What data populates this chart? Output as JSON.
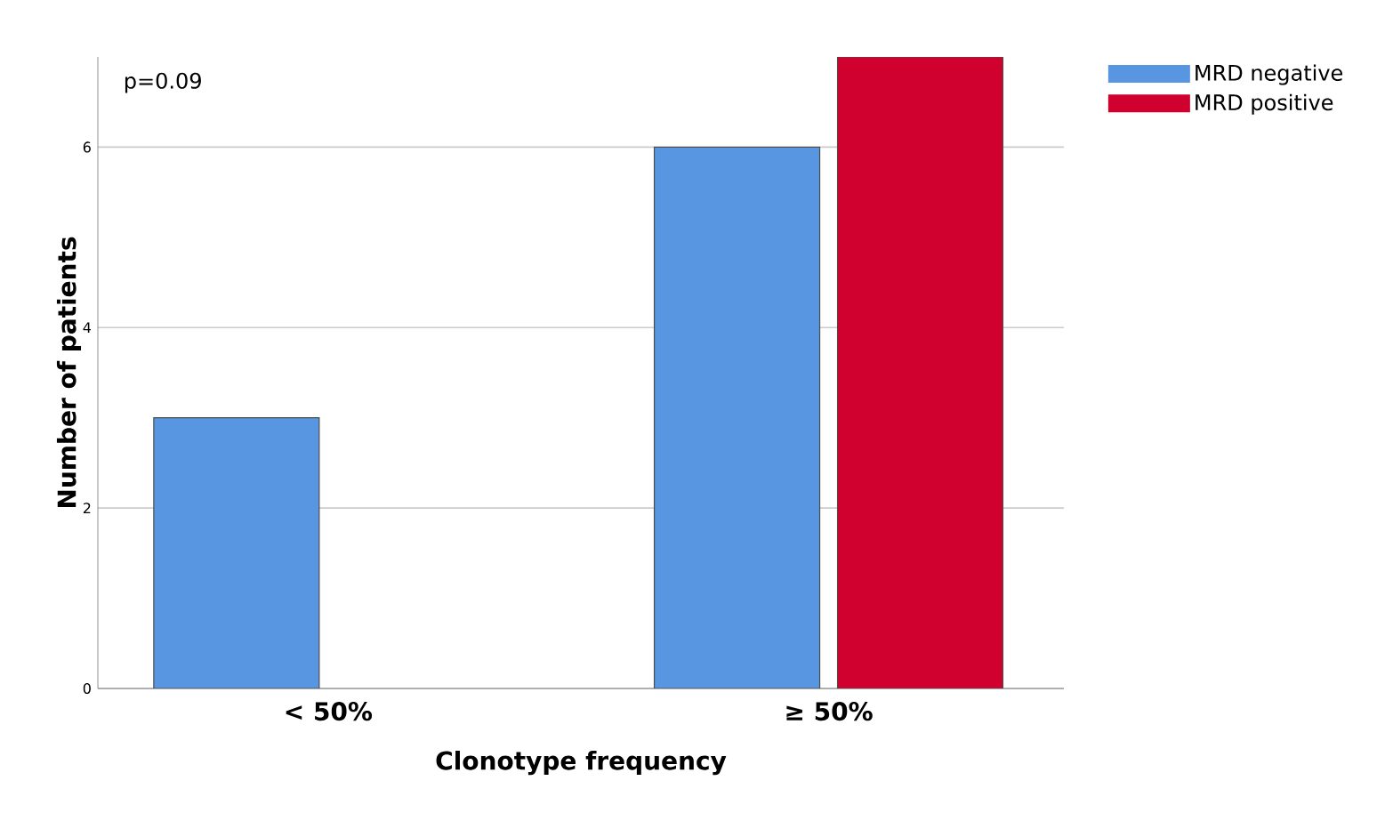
{
  "chart_data": {
    "type": "bar",
    "xlabel": "Clonotype frequency",
    "ylabel": "Number of patients",
    "categories": [
      "< 50%",
      "≥ 50%"
    ],
    "series": [
      {
        "name": "MRD negative",
        "color": "#5896e1",
        "values": [
          3,
          6
        ]
      },
      {
        "name": "MRD positive",
        "color": "#d0002f",
        "values": [
          null,
          7
        ]
      }
    ],
    "ylim": [
      0,
      7
    ],
    "yticks": [
      0,
      2,
      4,
      6
    ],
    "grid": "y",
    "legend": "top right",
    "annotations": [
      "p=0.09"
    ]
  }
}
